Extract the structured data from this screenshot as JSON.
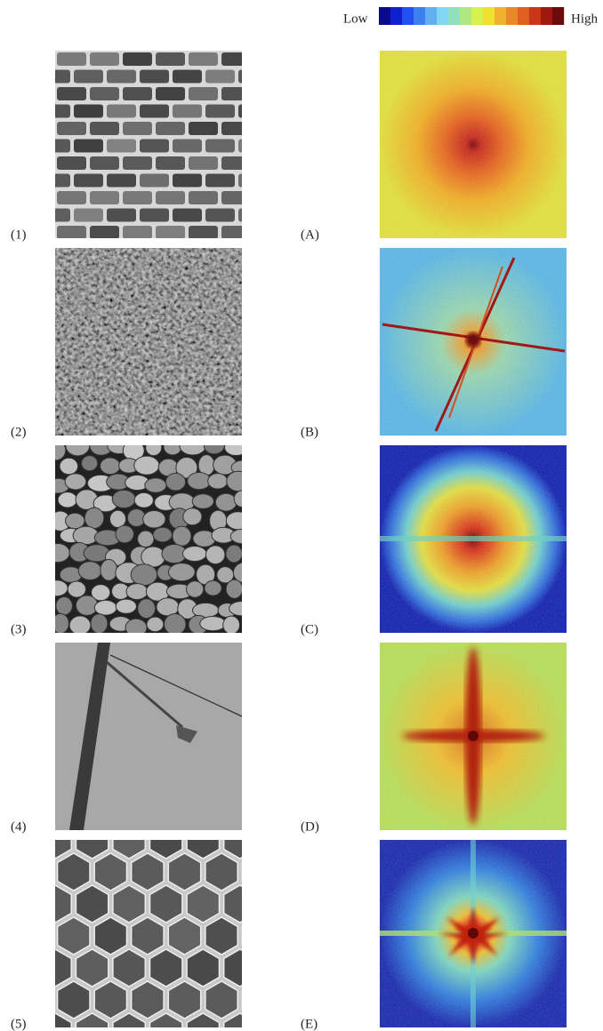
{
  "colorbar": {
    "low": "Low",
    "high": "High"
  },
  "rows": [
    {
      "image_label": "(1)",
      "spectrum_label": "(A)"
    },
    {
      "image_label": "(2)",
      "spectrum_label": "(B)"
    },
    {
      "image_label": "(3)",
      "spectrum_label": "(C)"
    },
    {
      "image_label": "(4)",
      "spectrum_label": "(D)"
    },
    {
      "image_label": "(5)",
      "spectrum_label": "(E)"
    }
  ]
}
